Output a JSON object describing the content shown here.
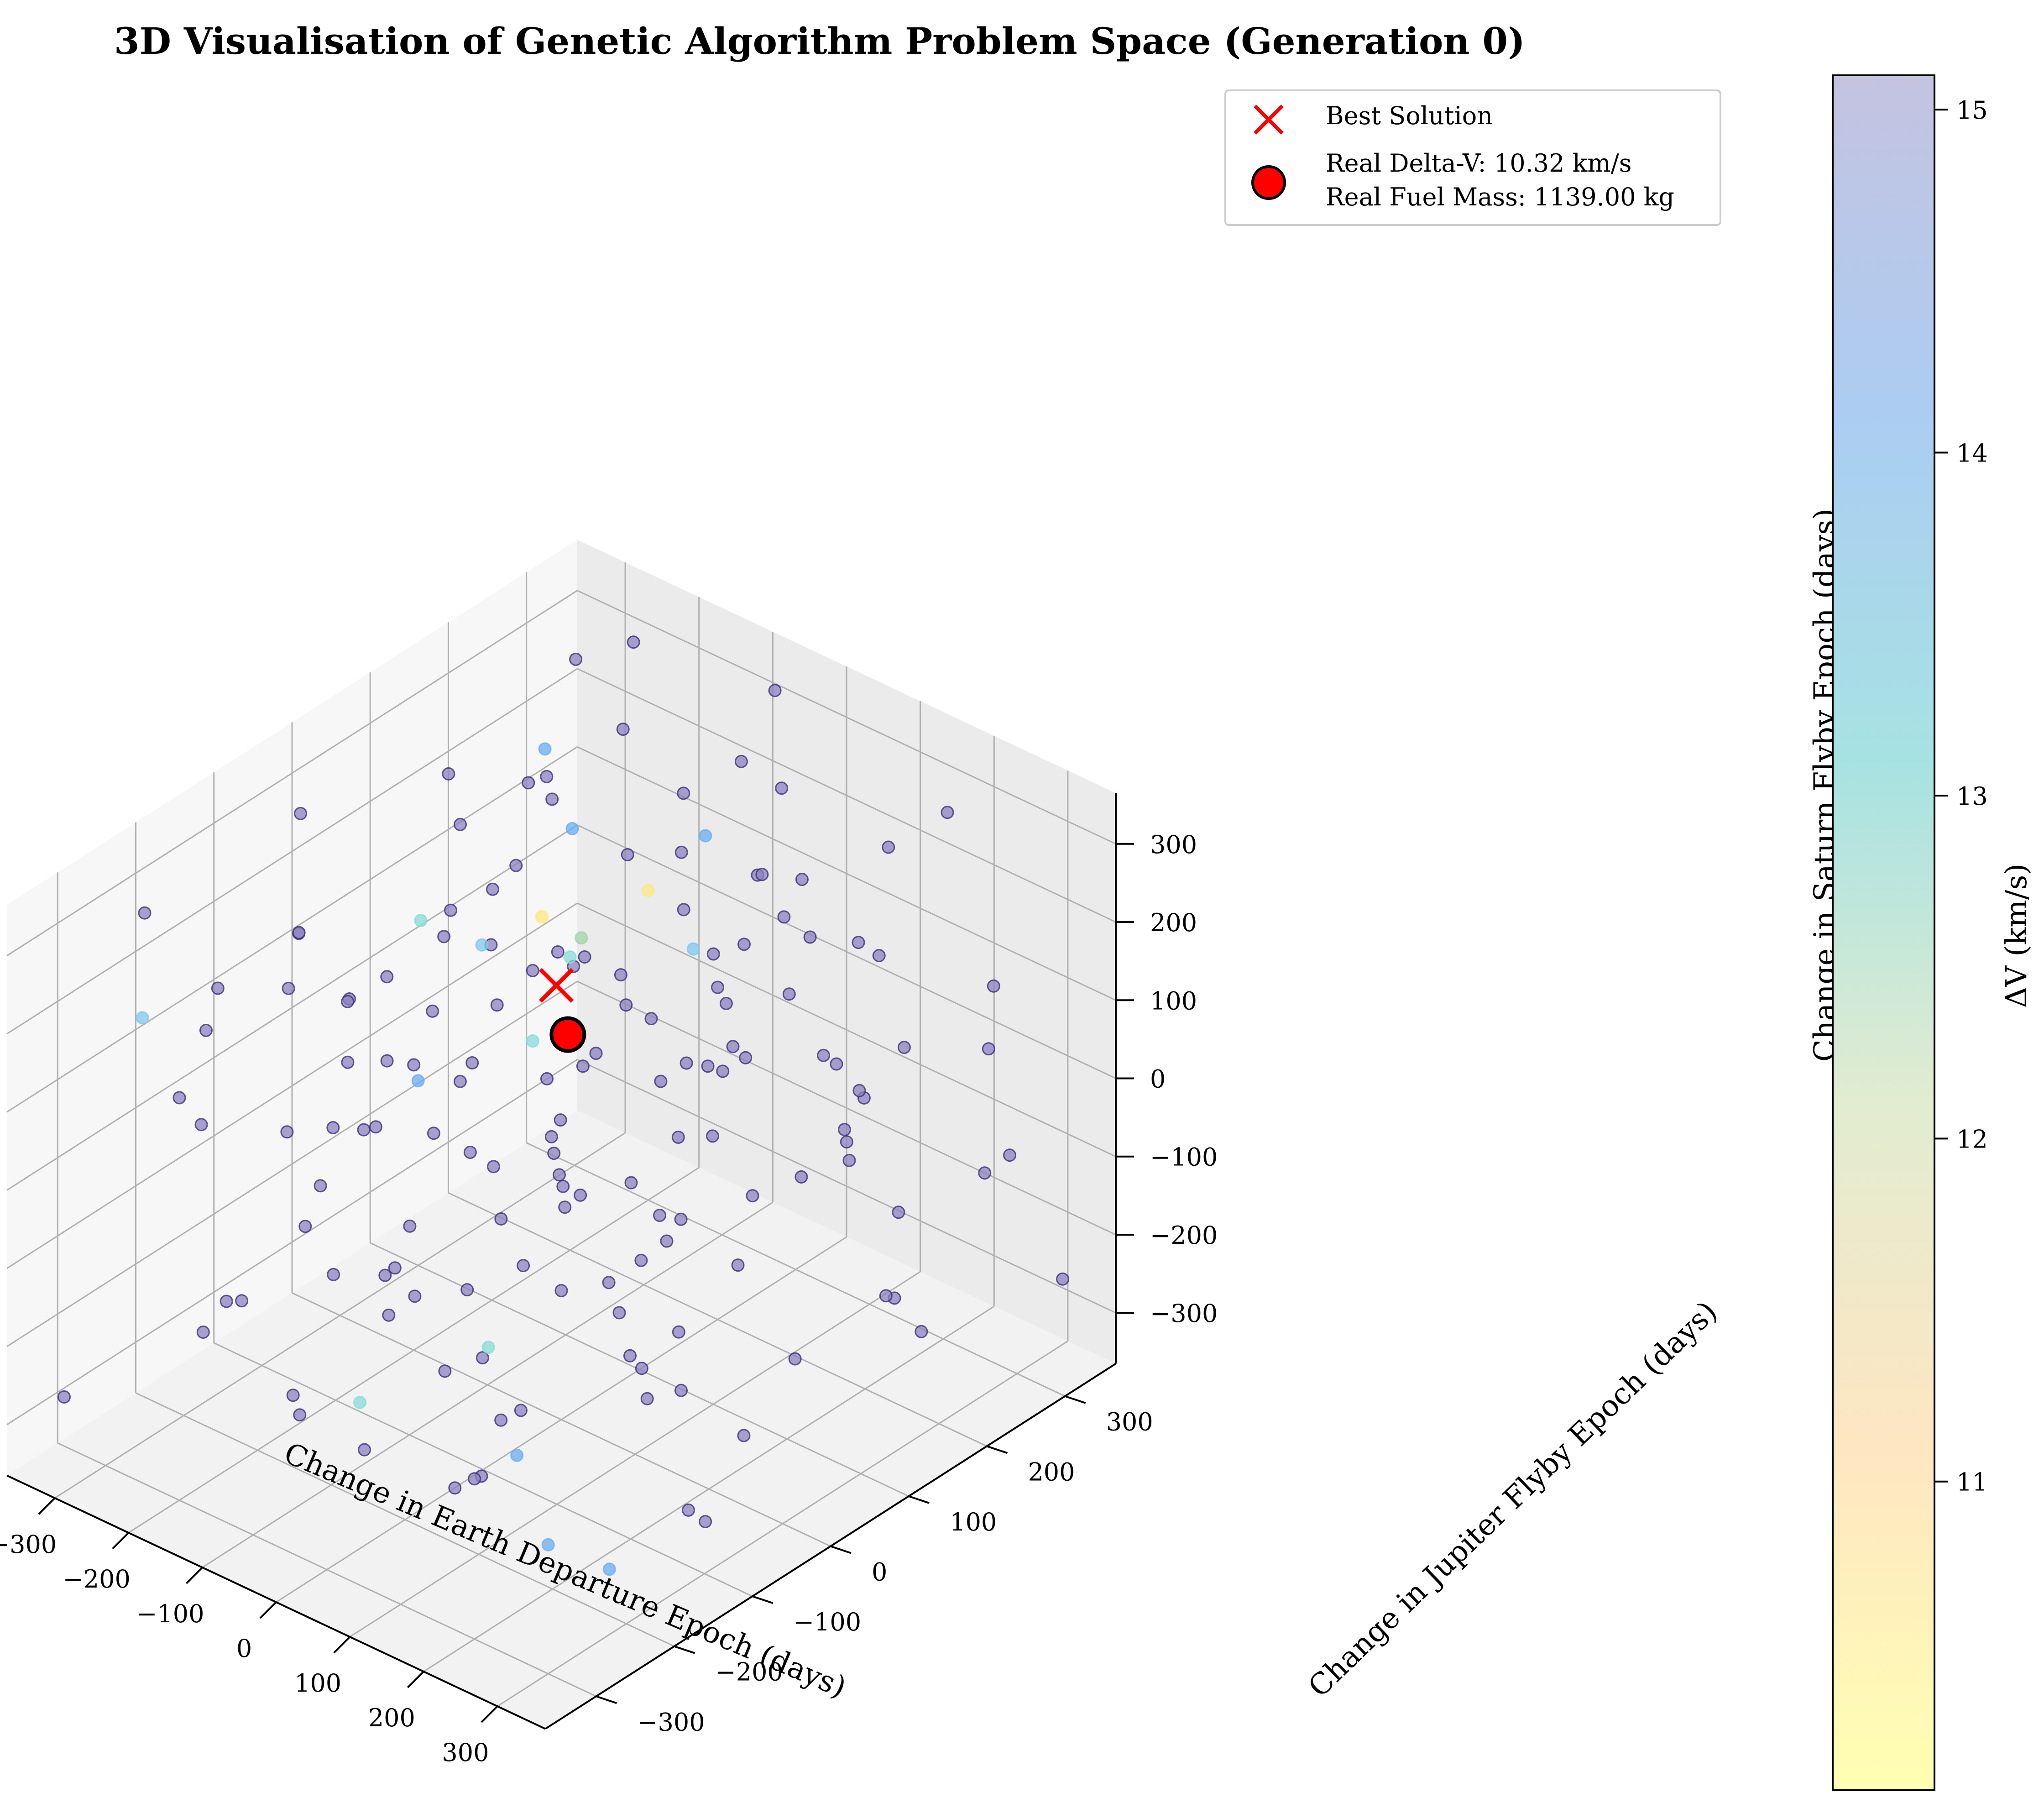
{
  "chart_data": {
    "type": "scatter",
    "title": "3D Visualisation of Genetic Algorithm Problem Space (Generation 0)",
    "xlabel": "Change in Earth Departure Epoch (days)",
    "ylabel": "Change in Jupiter Flyby Epoch (days)",
    "zlabel": "Change in Saturn Flyby Epoch (days)",
    "xlim": [
      -365,
      365
    ],
    "ylim": [
      -365,
      365
    ],
    "zlim": [
      -365,
      365
    ],
    "x_ticks": [
      -300,
      -200,
      -100,
      0,
      100,
      200,
      300
    ],
    "y_ticks": [
      -300,
      -200,
      -100,
      0,
      100,
      200,
      300
    ],
    "z_ticks": [
      -300,
      -200,
      -100,
      0,
      100,
      200,
      300
    ],
    "x_tick_labels": [
      "−300",
      "−200",
      "−100",
      "0",
      "100",
      "200",
      "300"
    ],
    "y_tick_labels": [
      "−300",
      "−200",
      "−100",
      "0",
      "100",
      "200",
      "300"
    ],
    "z_tick_labels": [
      "−300",
      "−200",
      "−100",
      "0",
      "100",
      "200",
      "300"
    ],
    "grid": true,
    "legend_position": "top-right",
    "colorbar": {
      "label": "ΔV (km/s)",
      "min": 10.1,
      "max": 15.1,
      "ticks": [
        11,
        12,
        13,
        14,
        15
      ],
      "tick_labels": [
        "11",
        "12",
        "13",
        "14",
        "15"
      ],
      "colormap": [
        "#ffffb2",
        "#fee6c2",
        "#e2ecd0",
        "#a7e2e2",
        "#abcdf2",
        "#c4c3e0"
      ]
    },
    "point_colors": {
      "low_dv": "#fce980",
      "green_dv": "#9fd6a4",
      "teal_dv": "#86dcd8",
      "sky_dv": "#7fc8ee",
      "blue_dv": "#6aaef0",
      "high_dv": "#8c82c2",
      "edge": "#3b2f78"
    },
    "best_solution": {
      "label": "Best Solution",
      "x": -12,
      "y": 5,
      "z": 182,
      "color": "#ff0000",
      "marker": "x"
    },
    "real_solution": {
      "label_line1": "Real Delta-V: 10.32 km/s",
      "label_line2": "Real Fuel Mass: 1139.00 kg",
      "x": -150,
      "y": 150,
      "z": -35,
      "color": "#ff0000",
      "marker": "o"
    },
    "points": [
      [
        -300,
        -250,
        310,
        15
      ],
      [
        -280,
        120,
        260,
        15
      ],
      [
        -250,
        -100,
        210,
        15
      ],
      [
        -220,
        300,
        340,
        15
      ],
      [
        -200,
        -300,
        150,
        15
      ],
      [
        -190,
        50,
        280,
        15
      ],
      [
        -175,
        250,
        120,
        15
      ],
      [
        -160,
        -200,
        60,
        15
      ],
      [
        -140,
        90,
        330,
        15
      ],
      [
        -120,
        -50,
        -20,
        15
      ],
      [
        -110,
        180,
        40,
        15
      ],
      [
        -95,
        320,
        230,
        15
      ],
      [
        -80,
        -150,
        -120,
        15
      ],
      [
        -60,
        20,
        170,
        15
      ],
      [
        -45,
        230,
        -80,
        15
      ],
      [
        -30,
        -280,
        100,
        15
      ],
      [
        -15,
        140,
        -200,
        15
      ],
      [
        0,
        -90,
        300,
        15
      ],
      [
        15,
        60,
        -260,
        15
      ],
      [
        30,
        290,
        80,
        15
      ],
      [
        45,
        -230,
        -40,
        15
      ],
      [
        60,
        100,
        250,
        15
      ],
      [
        75,
        -10,
        -150,
        15
      ],
      [
        90,
        200,
        190,
        15
      ],
      [
        105,
        -320,
        20,
        15
      ],
      [
        120,
        40,
        -300,
        15
      ],
      [
        135,
        260,
        -60,
        15
      ],
      [
        150,
        -160,
        240,
        15
      ],
      [
        165,
        80,
        120,
        15
      ],
      [
        180,
        -60,
        -220,
        15
      ],
      [
        195,
        310,
        300,
        15
      ],
      [
        210,
        -250,
        -100,
        15
      ],
      [
        225,
        150,
        10,
        15
      ],
      [
        240,
        -20,
        200,
        15
      ],
      [
        255,
        220,
        -280,
        15
      ],
      [
        270,
        -120,
        60,
        15
      ],
      [
        285,
        30,
        -180,
        15
      ],
      [
        300,
        270,
        150,
        15
      ],
      [
        315,
        -300,
        280,
        15
      ],
      [
        330,
        120,
        -30,
        15
      ],
      [
        -320,
        10,
        -140,
        15
      ],
      [
        -305,
        200,
        50,
        15
      ],
      [
        -285,
        -140,
        -250,
        15
      ],
      [
        -265,
        280,
        -70,
        15
      ],
      [
        -245,
        -40,
        90,
        15
      ],
      [
        -230,
        140,
        -300,
        15
      ],
      [
        -210,
        -260,
        -180,
        15
      ],
      [
        -195,
        70,
        -40,
        15
      ],
      [
        -180,
        330,
        -200,
        15
      ],
      [
        -165,
        -180,
        300,
        15
      ],
      [
        -150,
        0,
        220,
        15
      ],
      [
        -130,
        250,
        -150,
        15
      ],
      [
        -115,
        -320,
        -60,
        15
      ],
      [
        -100,
        110,
        100,
        15
      ],
      [
        -85,
        -70,
        260,
        15
      ],
      [
        -70,
        300,
        20,
        15
      ],
      [
        -55,
        -200,
        -300,
        15
      ],
      [
        -40,
        40,
        -110,
        15
      ],
      [
        -25,
        180,
        310,
        15
      ],
      [
        -10,
        -120,
        140,
        15
      ],
      [
        5,
        240,
        -230,
        15
      ],
      [
        20,
        -20,
        40,
        15
      ],
      [
        35,
        120,
        -170,
        15
      ],
      [
        50,
        -300,
        220,
        15
      ],
      [
        65,
        320,
        -120,
        15
      ],
      [
        80,
        -80,
        320,
        15
      ],
      [
        95,
        60,
        0,
        15
      ],
      [
        110,
        -240,
        -250,
        15
      ],
      [
        125,
        190,
        260,
        15
      ],
      [
        140,
        -30,
        -80,
        15
      ],
      [
        155,
        280,
        -320,
        15
      ],
      [
        170,
        -170,
        160,
        15
      ],
      [
        185,
        20,
        300,
        15
      ],
      [
        200,
        250,
        40,
        15
      ],
      [
        215,
        -100,
        -140,
        15
      ],
      [
        230,
        90,
        -10,
        15
      ],
      [
        245,
        -280,
        120,
        15
      ],
      [
        260,
        170,
        -200,
        15
      ],
      [
        275,
        -40,
        260,
        15
      ],
      [
        290,
        300,
        -90,
        15
      ],
      [
        305,
        -200,
        -20,
        15
      ],
      [
        320,
        50,
        200,
        15
      ],
      [
        -335,
        -320,
        -280,
        15
      ],
      [
        -310,
        280,
        -320,
        15
      ],
      [
        -290,
        -60,
        320,
        15
      ],
      [
        -270,
        90,
        -20,
        15
      ],
      [
        -255,
        -220,
        40,
        15
      ],
      [
        -235,
        210,
        190,
        15
      ],
      [
        -215,
        -10,
        -260,
        15
      ],
      [
        -200,
        170,
        260,
        15
      ],
      [
        -185,
        -280,
        230,
        15
      ],
      [
        -170,
        40,
        -300,
        15
      ],
      [
        -155,
        300,
        100,
        15
      ],
      [
        -135,
        -110,
        20,
        15
      ],
      [
        -125,
        60,
        250,
        15
      ],
      [
        -105,
        -250,
        300,
        15
      ],
      [
        -90,
        200,
        -20,
        15
      ],
      [
        -75,
        -30,
        -300,
        15
      ],
      [
        -50,
        130,
        60,
        15
      ],
      [
        -35,
        -190,
        200,
        15
      ],
      [
        -20,
        270,
        150,
        15
      ],
      [
        -5,
        -330,
        -150,
        15
      ],
      [
        10,
        10,
        120,
        15
      ],
      [
        25,
        170,
        -100,
        15
      ],
      [
        40,
        -140,
        -330,
        15
      ],
      [
        55,
        230,
        320,
        15
      ],
      [
        70,
        -260,
        80,
        15
      ],
      [
        85,
        70,
        -260,
        15
      ],
      [
        100,
        -50,
        180,
        15
      ],
      [
        115,
        310,
        220,
        15
      ],
      [
        130,
        -200,
        -180,
        15
      ],
      [
        145,
        120,
        320,
        15
      ],
      [
        160,
        -300,
        -40,
        15
      ],
      [
        175,
        200,
        -60,
        15
      ],
      [
        190,
        -90,
        80,
        15
      ],
      [
        205,
        40,
        -320,
        15
      ],
      [
        220,
        -180,
        300,
        15
      ],
      [
        235,
        320,
        -150,
        15
      ],
      [
        250,
        -10,
        -50,
        15
      ],
      [
        265,
        130,
        280,
        15
      ],
      [
        280,
        -240,
        200,
        15
      ],
      [
        295,
        90,
        40,
        15
      ],
      [
        310,
        -130,
        -260,
        15
      ],
      [
        325,
        240,
        100,
        15
      ],
      [
        -300,
        60,
        30,
        15
      ],
      [
        -275,
        -180,
        180,
        15
      ],
      [
        -240,
        110,
        -200,
        15
      ],
      [
        -205,
        -80,
        130,
        15
      ],
      [
        -160,
        230,
        300,
        15
      ],
      [
        -120,
        -230,
        -240,
        15
      ],
      [
        -80,
        80,
        -180,
        15
      ],
      [
        -40,
        -290,
        50,
        15
      ],
      [
        0,
        200,
        60,
        15
      ],
      [
        40,
        -120,
        260,
        15
      ],
      [
        80,
        260,
        -30,
        15
      ],
      [
        120,
        -200,
        140,
        15
      ],
      [
        160,
        60,
        200,
        15
      ],
      [
        200,
        -300,
        -160,
        15
      ],
      [
        240,
        180,
        220,
        15
      ],
      [
        280,
        -80,
        -320,
        15
      ],
      [
        -60,
        330,
        330,
        15
      ],
      [
        60,
        -330,
        330,
        15
      ],
      [
        -330,
        330,
        250,
        15
      ],
      [
        330,
        330,
        -250,
        15
      ],
      [
        -200,
        0,
        0,
        15
      ],
      [
        0,
        0,
        -200,
        15
      ],
      [
        150,
        150,
        150,
        15
      ],
      [
        -150,
        -150,
        -150,
        15
      ],
      [
        -90,
        60,
        200,
        11.2
      ],
      [
        -100,
        120,
        130,
        11.8
      ],
      [
        -20,
        130,
        220,
        11.0
      ],
      [
        60,
        -150,
        -150,
        12.8
      ],
      [
        -40,
        -220,
        -220,
        12.6
      ],
      [
        -180,
        -10,
        200,
        13.4
      ],
      [
        -60,
        20,
        80,
        13.4
      ],
      [
        -150,
        40,
        150,
        13.6
      ],
      [
        -250,
        -300,
        230,
        13.8
      ],
      [
        20,
        150,
        150,
        13.6
      ],
      [
        -200,
        200,
        10,
        13.2
      ],
      [
        -340,
        300,
        150,
        14.2
      ],
      [
        300,
        -340,
        -60,
        14.4
      ],
      [
        330,
        -250,
        -250,
        14.6
      ],
      [
        300,
        -300,
        -200,
        14.6
      ],
      [
        -250,
        250,
        120,
        14.4
      ],
      [
        -80,
        260,
        180,
        14.8
      ],
      [
        -120,
        -70,
        60,
        14.2
      ]
    ]
  }
}
